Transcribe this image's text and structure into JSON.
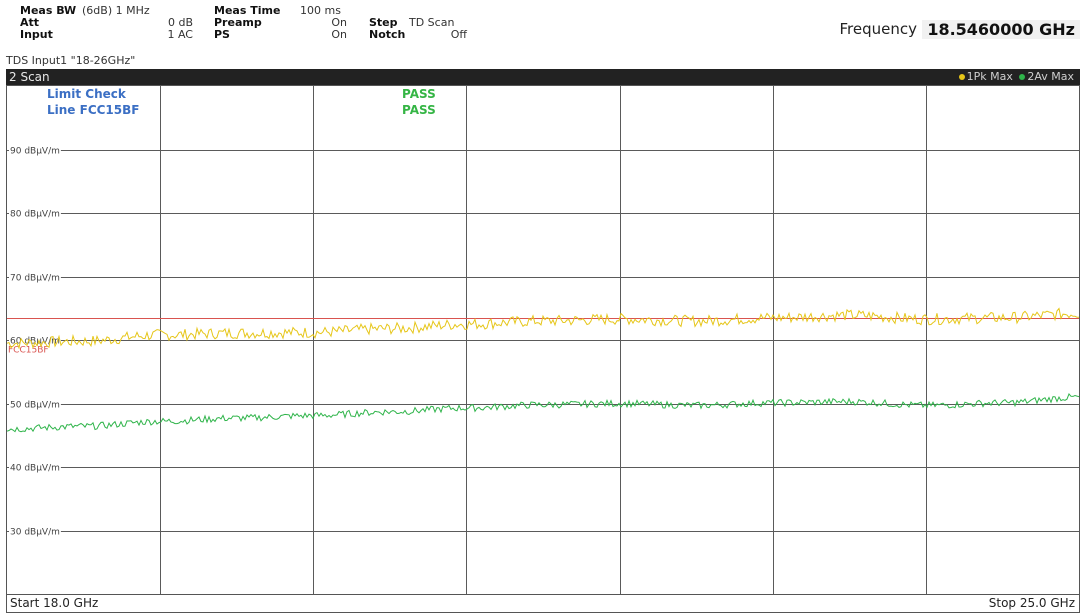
{
  "header": {
    "meas_bw_label": "Meas BW",
    "meas_bw_value": "(6dB) 1 MHz",
    "att_label": "Att",
    "att_value": "0 dB",
    "input_label": "Input",
    "input_value": "1 AC",
    "meas_time_label": "Meas Time",
    "meas_time_value": "100 ms",
    "preamp_label": "Preamp",
    "preamp_value": "On",
    "ps_label": "PS",
    "ps_value": "On",
    "step_label": "Step",
    "step_value": "TD Scan",
    "notch_label": "Notch",
    "notch_value": "Off",
    "frequency_label": "Frequency",
    "frequency_value": "18.5460000 GHz",
    "tds_label": "TDS Input1 \"18-26GHz\""
  },
  "window": {
    "title": "2 Scan",
    "legend": [
      "1Pk Max",
      "2Av Max"
    ],
    "legend_colors": [
      "#e6c619",
      "#2fb44a"
    ]
  },
  "limit_check": {
    "rows": [
      {
        "name": "Limit Check",
        "result": "PASS"
      },
      {
        "name": "Line FCC15BF",
        "result": "PASS"
      }
    ]
  },
  "footer": {
    "start": "Start 18.0 GHz",
    "stop": "Stop 25.0 GHz"
  },
  "chart_data": {
    "type": "line",
    "xlim": [
      18.0,
      25.0
    ],
    "ylim": [
      20,
      100
    ],
    "y_ticks": [
      90,
      80,
      70,
      60,
      50,
      40,
      30
    ],
    "y_tick_labels": [
      "90 dBµV/m",
      "80 dBµV/m",
      "70 dBµV/m",
      "60 dBµV/m",
      "50 dBµV/m",
      "40 dBµV/m",
      "30 dBµV/m"
    ],
    "x_divisions": 7,
    "grid": true,
    "limit_line": {
      "name": "FCC15BF",
      "value": 63.5,
      "color": "#d9534f"
    },
    "series": [
      {
        "name": "1Pk Max",
        "color": "#e6c619",
        "x": [
          18.0,
          18.5,
          19.0,
          19.5,
          20.0,
          20.5,
          21.0,
          21.5,
          22.0,
          22.5,
          23.0,
          23.5,
          24.0,
          24.5,
          25.0
        ],
        "y": [
          59.5,
          59.8,
          60.8,
          61.1,
          61.2,
          61.8,
          62.5,
          63.0,
          63.3,
          63.0,
          63.5,
          63.9,
          63.3,
          63.5,
          64.2
        ]
      },
      {
        "name": "2Av Max",
        "color": "#2fb44a",
        "x": [
          18.0,
          18.5,
          19.0,
          19.5,
          20.0,
          20.5,
          21.0,
          21.5,
          22.0,
          22.5,
          23.0,
          23.5,
          24.0,
          24.5,
          25.0
        ],
        "y": [
          46.0,
          46.4,
          47.2,
          47.7,
          48.1,
          48.7,
          49.3,
          49.8,
          50.0,
          49.7,
          50.1,
          50.3,
          49.7,
          50.1,
          51.0
        ]
      }
    ]
  }
}
